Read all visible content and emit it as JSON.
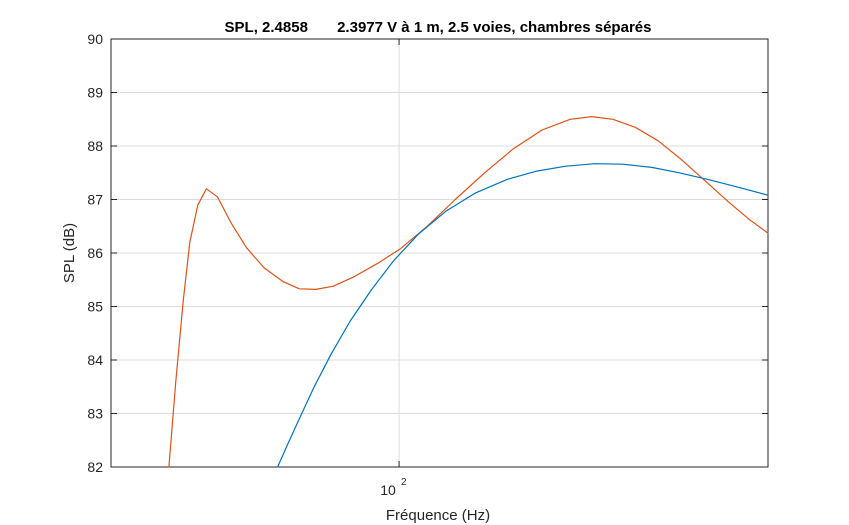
{
  "chart_data": {
    "type": "line",
    "title": "SPL, 2.4858       2.3977 V à 1 m, 2.5 voies, chambres séparés",
    "xlabel": "Fréquence (Hz)",
    "ylabel": "SPL (dB)",
    "xscale": "log",
    "xlim": [
      36,
      370
    ],
    "ylim": [
      82,
      90
    ],
    "x_tick_base": "10",
    "x_tick_exponent": "2",
    "x_tick_value": 100,
    "y_ticks": [
      82,
      83,
      84,
      85,
      86,
      87,
      88,
      89,
      90
    ],
    "grid": true,
    "legend": "none",
    "series": [
      {
        "color": "#D95319",
        "x": [
          44.2,
          45.3,
          46.5,
          47.6,
          49.0,
          50.5,
          52.5,
          55.2,
          58.2,
          62.0,
          66.2,
          70.2,
          74.5,
          79.2,
          85.0,
          92.5,
          100.5,
          110.5,
          122.0,
          135.5,
          150.0,
          166.0,
          183.5,
          198.0,
          213.5,
          231.0,
          250.5,
          272.0,
          296.0,
          322.0,
          346.0,
          370.0
        ],
        "y": [
          82.0,
          83.6,
          85.1,
          86.2,
          86.9,
          87.2,
          87.05,
          86.55,
          86.1,
          85.72,
          85.47,
          85.33,
          85.32,
          85.38,
          85.55,
          85.8,
          86.08,
          86.5,
          87.0,
          87.5,
          87.95,
          88.3,
          88.5,
          88.55,
          88.5,
          88.35,
          88.1,
          87.75,
          87.35,
          86.95,
          86.63,
          86.37
        ]
      },
      {
        "color": "#0072BD",
        "x": [
          65.0,
          67.5,
          70.5,
          74.0,
          78.5,
          84.0,
          90.5,
          98.0,
          107.0,
          118.0,
          131.0,
          147.0,
          163.0,
          180.0,
          200.0,
          221.0,
          245.0,
          270.0,
          300.0,
          335.0,
          370.0
        ],
        "y": [
          82.0,
          82.45,
          82.95,
          83.5,
          84.1,
          84.72,
          85.3,
          85.85,
          86.35,
          86.78,
          87.12,
          87.38,
          87.53,
          87.62,
          87.67,
          87.66,
          87.6,
          87.5,
          87.37,
          87.22,
          87.08
        ]
      }
    ]
  }
}
